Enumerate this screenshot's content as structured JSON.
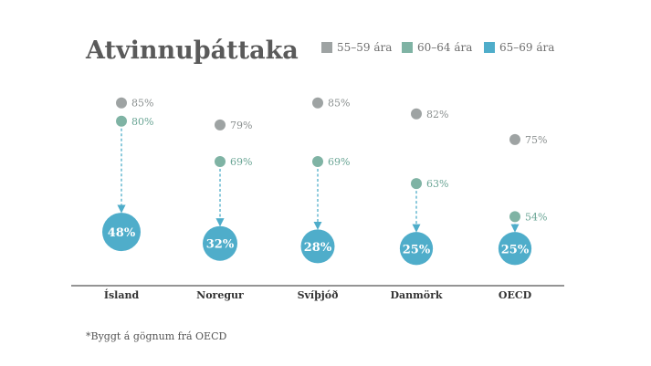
{
  "chart_data": {
    "type": "scatter",
    "title": "Atvinnuþáttaka",
    "categories": [
      "Ísland",
      "Noregur",
      "Svíþjóð",
      "Danmörk",
      "OECD"
    ],
    "series": [
      {
        "name": "55–59 ára",
        "values": [
          85,
          79,
          85,
          82,
          75
        ],
        "color": "#9ea3a3"
      },
      {
        "name": "60–64 ára",
        "values": [
          80,
          69,
          69,
          63,
          54
        ],
        "color": "#7fb3a4"
      },
      {
        "name": "65–69 ára",
        "values": [
          48,
          32,
          28,
          25,
          25
        ],
        "color": "#4fadca"
      }
    ],
    "value_suffix": "%",
    "arrow_color": "#4fadca",
    "axis_color": "#555555",
    "legend_position": "top-right",
    "grid": false
  },
  "footnote": "*Byggt á gögnum frá OECD"
}
